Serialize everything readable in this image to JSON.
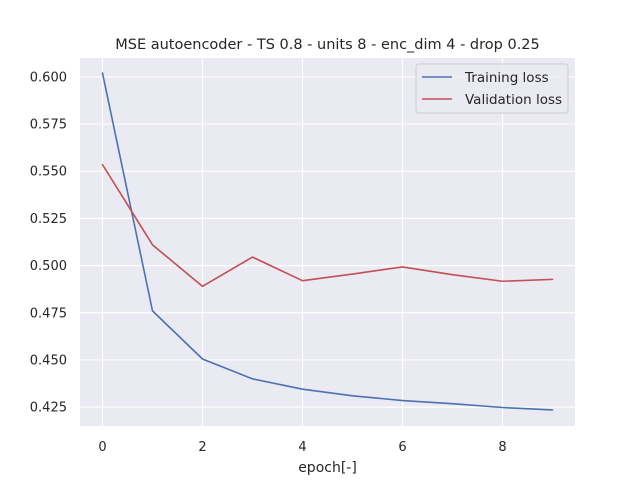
{
  "chart_data": {
    "type": "line",
    "title": "MSE autoencoder - TS 0.8 - units 8 - enc_dim 4 - drop 0.25",
    "xlabel": "epoch[-]",
    "ylabel": "",
    "xlim": [
      -0.45,
      9.45
    ],
    "ylim": [
      0.415,
      0.61
    ],
    "xticks": [
      0,
      2,
      4,
      6,
      8
    ],
    "yticks": [
      0.425,
      0.45,
      0.475,
      0.5,
      0.525,
      0.55,
      0.575,
      0.6
    ],
    "ytick_labels": [
      "0.425",
      "0.450",
      "0.475",
      "0.500",
      "0.525",
      "0.550",
      "0.575",
      "0.600"
    ],
    "grid": true,
    "legend_position": "top-right",
    "x": [
      0,
      1,
      2,
      3,
      4,
      5,
      6,
      7,
      8,
      9
    ],
    "series": [
      {
        "name": "Training loss",
        "color": "#4c72b0",
        "values": [
          0.602,
          0.476,
          0.4505,
          0.44,
          0.4345,
          0.431,
          0.4285,
          0.4268,
          0.4248,
          0.4235
        ]
      },
      {
        "name": "Validation loss",
        "color": "#c44e52",
        "values": [
          0.5535,
          0.511,
          0.489,
          0.5045,
          0.492,
          0.4955,
          0.4993,
          0.4952,
          0.4917,
          0.4927
        ]
      }
    ]
  }
}
